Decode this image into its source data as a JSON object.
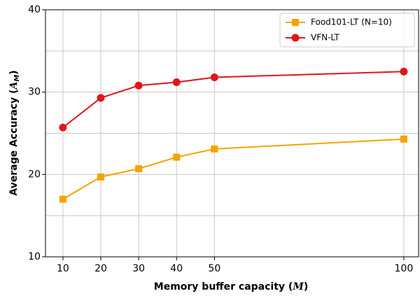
{
  "chart_data": {
    "type": "line",
    "xlabel": [
      "Memory buffer capacity (",
      "M",
      ")"
    ],
    "ylabel": [
      "Average Accuracy (",
      "A",
      "M",
      ")"
    ],
    "x": [
      10,
      20,
      30,
      40,
      50,
      100
    ],
    "series": [
      {
        "name": "Food101-LT (N=10)",
        "color": "#f5a300",
        "marker": "square",
        "values": [
          17.0,
          19.7,
          20.7,
          22.1,
          23.1,
          24.3
        ]
      },
      {
        "name": "VFN-LT",
        "color": "#e0161b",
        "marker": "circle",
        "values": [
          25.7,
          29.3,
          30.8,
          31.2,
          31.8,
          32.5
        ]
      }
    ],
    "xlim": [
      5.4,
      103.9
    ],
    "xticks": [
      10,
      20,
      30,
      40,
      50,
      100
    ],
    "ylim": [
      10,
      40
    ],
    "yticks": [
      10,
      20,
      30,
      40
    ],
    "yminorticks": [
      15,
      25,
      35
    ],
    "grid": true,
    "legend": "upper right"
  }
}
